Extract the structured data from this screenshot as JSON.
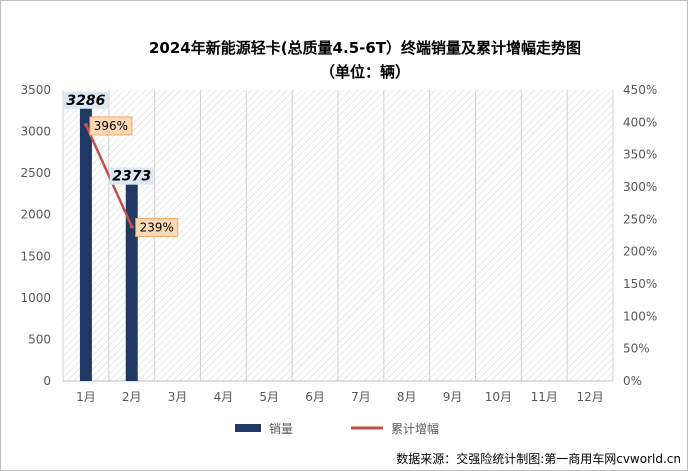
{
  "chart_data": {
    "type": "bar",
    "title": "2024年新能源轻卡(总质量4.5-6T）终端销量及累计增幅走势图",
    "subtitle": "（单位：辆）",
    "categories": [
      "1月",
      "2月",
      "3月",
      "4月",
      "5月",
      "6月",
      "7月",
      "8月",
      "9月",
      "10月",
      "11月",
      "12月"
    ],
    "series": [
      {
        "name": "销量",
        "type": "bar",
        "axis": "left",
        "color": "#1f3864",
        "values": [
          3286,
          2373,
          null,
          null,
          null,
          null,
          null,
          null,
          null,
          null,
          null,
          null
        ],
        "labels": [
          "3286",
          "2373"
        ]
      },
      {
        "name": "累计增幅",
        "type": "line",
        "axis": "right",
        "color": "#c0504d",
        "values": [
          396,
          239,
          null,
          null,
          null,
          null,
          null,
          null,
          null,
          null,
          null,
          null
        ],
        "labels": [
          "396%",
          "239%"
        ]
      }
    ],
    "y_left": {
      "min": 0,
      "max": 3500,
      "step": 500,
      "ticks": [
        "0",
        "500",
        "1000",
        "1500",
        "2000",
        "2500",
        "3000",
        "3500"
      ]
    },
    "y_right": {
      "min": 0,
      "max": 450,
      "step": 50,
      "ticks": [
        "0%",
        "50%",
        "100%",
        "150%",
        "200%",
        "250%",
        "300%",
        "350%",
        "400%",
        "450%"
      ]
    },
    "legend": {
      "position": "bottom",
      "items": [
        "销量",
        "累计增幅"
      ]
    },
    "grid": true,
    "source": "数据来源：交强险统计制图:第一商用车网cvworld.cn"
  }
}
